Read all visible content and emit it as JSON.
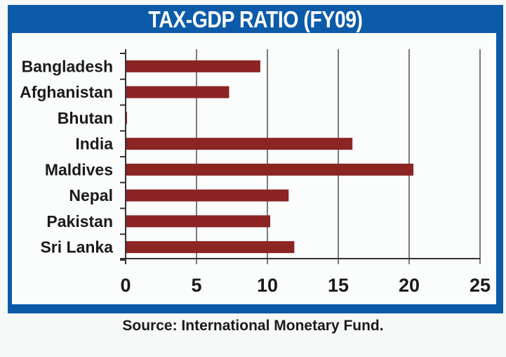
{
  "colors": {
    "frame": "#0b5ba9",
    "bar": "#8b2423",
    "grid": "#7a7a7a",
    "text": "#1a1a1a"
  },
  "source": "Source: International Monetary Fund.",
  "chart_data": {
    "type": "bar",
    "orientation": "horizontal",
    "title": "TAX-GDP RATIO (FY09)",
    "xlabel": "",
    "ylabel": "",
    "categories": [
      "Bangladesh",
      "Afghanistan",
      "Bhutan",
      "India",
      "Maldives",
      "Nepal",
      "Pakistan",
      "Sri Lanka"
    ],
    "values": [
      9.5,
      7.3,
      0.1,
      16.0,
      20.3,
      11.5,
      10.2,
      11.9
    ],
    "xlim": [
      0,
      25
    ],
    "xticks": [
      0,
      5,
      10,
      15,
      20,
      25
    ],
    "xtick_labels": [
      "0",
      "5",
      "10",
      "15",
      "20",
      "25"
    ],
    "grid": "vertical",
    "legend": "none"
  }
}
